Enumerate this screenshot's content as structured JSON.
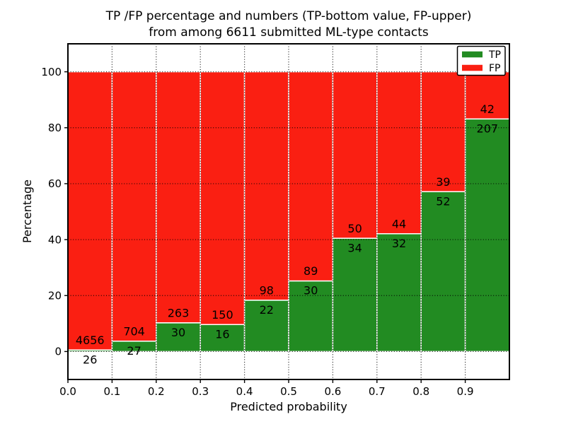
{
  "chart_data": {
    "type": "bar",
    "stacked": true,
    "normalized_to_percent": true,
    "title_line1": "TP /FP percentage and numbers (TP-bottom value, FP-upper)",
    "title_line2": "from among 6611 submitted ML-type contacts",
    "xlabel": "Predicted probability",
    "ylabel": "Percentage",
    "total_contacts": 6611,
    "xlim": [
      0,
      1
    ],
    "ylim": [
      -10,
      110
    ],
    "bin_width": 0.1,
    "bins": [
      0.0,
      0.1,
      0.2,
      0.3,
      0.4,
      0.5,
      0.6,
      0.7,
      0.8,
      0.9
    ],
    "x_tick_values": [
      0.0,
      0.1,
      0.2,
      0.3,
      0.4,
      0.5,
      0.6,
      0.7,
      0.8,
      0.9
    ],
    "x_tick_labels": [
      "0.0",
      "0.1",
      "0.2",
      "0.3",
      "0.4",
      "0.5",
      "0.6",
      "0.7",
      "0.8",
      "0.9"
    ],
    "y_tick_values": [
      0,
      20,
      40,
      60,
      80,
      100
    ],
    "y_tick_labels": [
      "0",
      "20",
      "40",
      "60",
      "80",
      "100"
    ],
    "grid": true,
    "series": [
      {
        "name": "TP",
        "color": "#228b22",
        "values": [
          26,
          27,
          30,
          16,
          22,
          30,
          34,
          32,
          52,
          207
        ]
      },
      {
        "name": "FP",
        "color": "#fa1f12",
        "values": [
          4656,
          704,
          263,
          150,
          98,
          89,
          50,
          44,
          39,
          42
        ]
      }
    ],
    "legend": {
      "position": "upper right",
      "entries": [
        {
          "label": "TP",
          "color": "#228b22"
        },
        {
          "label": "FP",
          "color": "#fa1f12"
        }
      ]
    },
    "style": {
      "bar_edge_color": "#ffffff",
      "grid_color": "#000000",
      "axes_border_color": "#000000",
      "background": "#ffffff"
    }
  }
}
